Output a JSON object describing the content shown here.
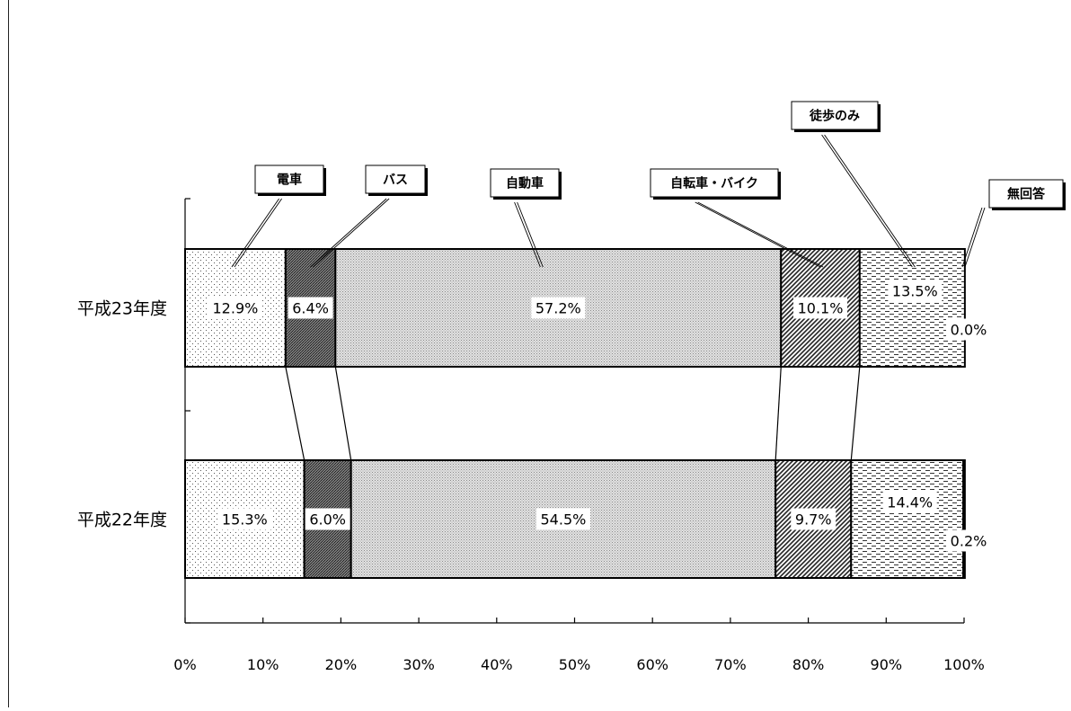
{
  "chart_data": {
    "type": "bar",
    "orientation": "horizontal",
    "stacked": true,
    "normalized_percent": true,
    "categories": [
      "平成23年度",
      "平成22年度"
    ],
    "series": [
      {
        "name": "電車",
        "values": [
          12.9,
          15.3
        ],
        "labels": [
          "12.9%",
          "15.3%"
        ],
        "pattern": "fine-dots"
      },
      {
        "name": "バス",
        "values": [
          6.4,
          6.0
        ],
        "labels": [
          "6.4%",
          "6.0%"
        ],
        "pattern": "dark-crosshatch"
      },
      {
        "name": "自動車",
        "values": [
          57.2,
          54.5
        ],
        "labels": [
          "57.2%",
          "54.5%"
        ],
        "pattern": "dense-dots"
      },
      {
        "name": "自転車・バイク",
        "values": [
          10.1,
          9.7
        ],
        "labels": [
          "10.1%",
          "9.7%"
        ],
        "pattern": "diagonal-lines"
      },
      {
        "name": "徒歩のみ",
        "values": [
          13.5,
          14.4
        ],
        "labels": [
          "13.5%",
          "14.4%"
        ],
        "pattern": "dashes"
      },
      {
        "name": "無回答",
        "values": [
          0.0,
          0.2
        ],
        "labels": [
          "0.0%",
          "0.2%"
        ],
        "pattern": "none"
      }
    ],
    "xlim": [
      0,
      100
    ],
    "x_ticks": [
      "0%",
      "10%",
      "20%",
      "30%",
      "40%",
      "50%",
      "60%",
      "70%",
      "80%",
      "90%",
      "100%"
    ],
    "grid": false,
    "legend": "callouts-above",
    "series_connector_lines": true
  }
}
